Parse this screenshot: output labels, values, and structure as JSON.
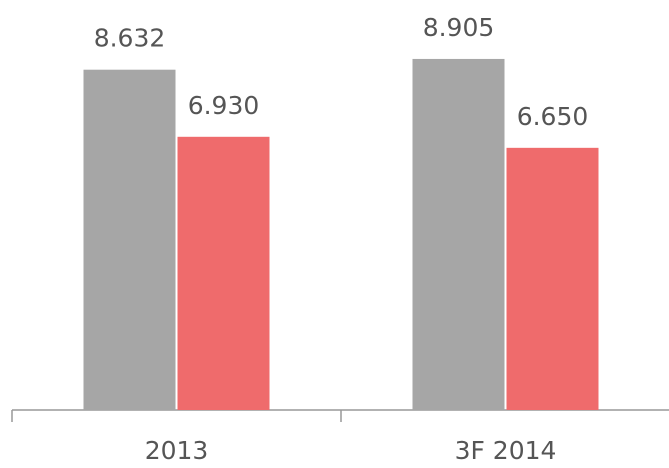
{
  "chart_data": {
    "type": "bar",
    "categories": [
      "2013",
      "3F 2014"
    ],
    "series": [
      {
        "color": "#a6a6a6",
        "values": [
          8.632,
          8.905
        ],
        "value_labels": [
          "8.632",
          "8.905"
        ]
      },
      {
        "color": "#ef6b6c",
        "values": [
          6.93,
          6.65
        ],
        "value_labels": [
          "6.930",
          "6.650"
        ]
      }
    ],
    "ylim": [
      0,
      10.4
    ]
  }
}
